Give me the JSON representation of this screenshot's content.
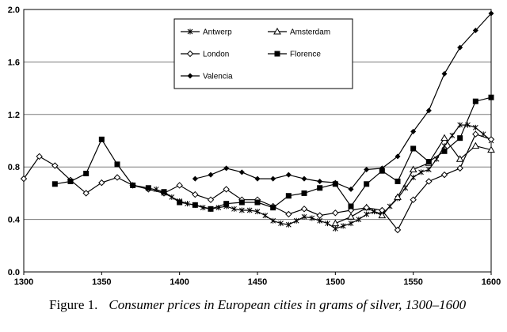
{
  "caption": {
    "figure_label": "Figure 1.",
    "text": "Consumer prices in European cities in grams of silver, 1300–1600"
  },
  "chart_data": {
    "type": "line",
    "title": "",
    "xlabel": "",
    "ylabel": "",
    "xlim": [
      1300,
      1600
    ],
    "ylim": [
      0.0,
      2.0
    ],
    "xticks": [
      1300,
      1350,
      1400,
      1450,
      1500,
      1550,
      1600
    ],
    "yticks": [
      0.0,
      0.4,
      0.8,
      1.2,
      1.6,
      2.0
    ],
    "ytick_labels": [
      "0.0",
      "0.4",
      "0.8",
      "1.2",
      "1.6",
      "2.0"
    ],
    "grid": "horizontal",
    "legend_position": "top-right",
    "series": [
      {
        "name": "Antwerp",
        "marker": "star",
        "color": "#000000",
        "points": [
          [
            1385,
            0.63
          ],
          [
            1390,
            0.6
          ],
          [
            1395,
            0.57
          ],
          [
            1400,
            0.54
          ],
          [
            1405,
            0.52
          ],
          [
            1410,
            0.51
          ],
          [
            1415,
            0.49
          ],
          [
            1420,
            0.48
          ],
          [
            1425,
            0.49
          ],
          [
            1430,
            0.5
          ],
          [
            1435,
            0.48
          ],
          [
            1440,
            0.47
          ],
          [
            1445,
            0.47
          ],
          [
            1450,
            0.46
          ],
          [
            1455,
            0.43
          ],
          [
            1460,
            0.39
          ],
          [
            1465,
            0.37
          ],
          [
            1470,
            0.36
          ],
          [
            1475,
            0.39
          ],
          [
            1480,
            0.42
          ],
          [
            1485,
            0.41
          ],
          [
            1490,
            0.39
          ],
          [
            1495,
            0.37
          ],
          [
            1500,
            0.33
          ],
          [
            1505,
            0.35
          ],
          [
            1510,
            0.37
          ],
          [
            1515,
            0.4
          ],
          [
            1520,
            0.44
          ],
          [
            1525,
            0.46
          ],
          [
            1530,
            0.44
          ],
          [
            1535,
            0.5
          ],
          [
            1540,
            0.56
          ],
          [
            1545,
            0.64
          ],
          [
            1550,
            0.72
          ],
          [
            1555,
            0.76
          ],
          [
            1560,
            0.78
          ],
          [
            1565,
            0.86
          ],
          [
            1570,
            0.96
          ],
          [
            1575,
            1.04
          ],
          [
            1580,
            1.12
          ],
          [
            1585,
            1.12
          ],
          [
            1590,
            1.1
          ],
          [
            1595,
            1.05
          ],
          [
            1600,
            1.0
          ]
        ]
      },
      {
        "name": "Amsterdam",
        "marker": "triangle",
        "color": "#000000",
        "points": [
          [
            1500,
            0.37
          ],
          [
            1510,
            0.42
          ],
          [
            1520,
            0.49
          ],
          [
            1530,
            0.43
          ],
          [
            1540,
            0.57
          ],
          [
            1550,
            0.78
          ],
          [
            1560,
            0.83
          ],
          [
            1570,
            1.02
          ],
          [
            1580,
            0.86
          ],
          [
            1590,
            0.96
          ],
          [
            1600,
            0.93
          ]
        ]
      },
      {
        "name": "London",
        "marker": "diamond-open",
        "color": "#000000",
        "points": [
          [
            1300,
            0.71
          ],
          [
            1310,
            0.88
          ],
          [
            1320,
            0.81
          ],
          [
            1330,
            0.7
          ],
          [
            1340,
            0.6
          ],
          [
            1350,
            0.68
          ],
          [
            1360,
            0.72
          ],
          [
            1370,
            0.66
          ],
          [
            1380,
            0.63
          ],
          [
            1390,
            0.6
          ],
          [
            1400,
            0.66
          ],
          [
            1410,
            0.59
          ],
          [
            1420,
            0.55
          ],
          [
            1430,
            0.63
          ],
          [
            1440,
            0.55
          ],
          [
            1450,
            0.55
          ],
          [
            1460,
            0.5
          ],
          [
            1470,
            0.44
          ],
          [
            1480,
            0.48
          ],
          [
            1490,
            0.43
          ],
          [
            1500,
            0.45
          ],
          [
            1510,
            0.47
          ],
          [
            1520,
            0.49
          ],
          [
            1530,
            0.47
          ],
          [
            1540,
            0.32
          ],
          [
            1550,
            0.55
          ],
          [
            1560,
            0.69
          ],
          [
            1570,
            0.74
          ],
          [
            1580,
            0.79
          ],
          [
            1590,
            1.05
          ],
          [
            1600,
            1.01
          ]
        ]
      },
      {
        "name": "Florence",
        "marker": "square",
        "color": "#000000",
        "points": [
          [
            1320,
            0.67
          ],
          [
            1330,
            0.69
          ],
          [
            1340,
            0.75
          ],
          [
            1350,
            1.01
          ],
          [
            1360,
            0.82
          ],
          [
            1370,
            0.66
          ],
          [
            1380,
            0.64
          ],
          [
            1390,
            0.61
          ],
          [
            1400,
            0.53
          ],
          [
            1410,
            0.51
          ],
          [
            1420,
            0.48
          ],
          [
            1430,
            0.52
          ],
          [
            1440,
            0.53
          ],
          [
            1450,
            0.53
          ],
          [
            1460,
            0.49
          ],
          [
            1470,
            0.58
          ],
          [
            1480,
            0.6
          ],
          [
            1490,
            0.64
          ],
          [
            1500,
            0.67
          ],
          [
            1510,
            0.5
          ],
          [
            1520,
            0.67
          ],
          [
            1530,
            0.77
          ],
          [
            1540,
            0.69
          ],
          [
            1550,
            0.94
          ],
          [
            1560,
            0.84
          ],
          [
            1570,
            0.92
          ],
          [
            1580,
            1.02
          ],
          [
            1590,
            1.3
          ],
          [
            1600,
            1.33
          ]
        ]
      },
      {
        "name": "Valencia",
        "marker": "diamond",
        "color": "#000000",
        "points": [
          [
            1410,
            0.71
          ],
          [
            1420,
            0.74
          ],
          [
            1430,
            0.79
          ],
          [
            1440,
            0.76
          ],
          [
            1450,
            0.71
          ],
          [
            1460,
            0.71
          ],
          [
            1470,
            0.74
          ],
          [
            1480,
            0.71
          ],
          [
            1490,
            0.69
          ],
          [
            1500,
            0.68
          ],
          [
            1510,
            0.63
          ],
          [
            1520,
            0.78
          ],
          [
            1530,
            0.79
          ],
          [
            1540,
            0.88
          ],
          [
            1550,
            1.07
          ],
          [
            1560,
            1.23
          ],
          [
            1570,
            1.51
          ],
          [
            1580,
            1.71
          ],
          [
            1590,
            1.84
          ],
          [
            1600,
            1.97
          ]
        ]
      }
    ]
  }
}
